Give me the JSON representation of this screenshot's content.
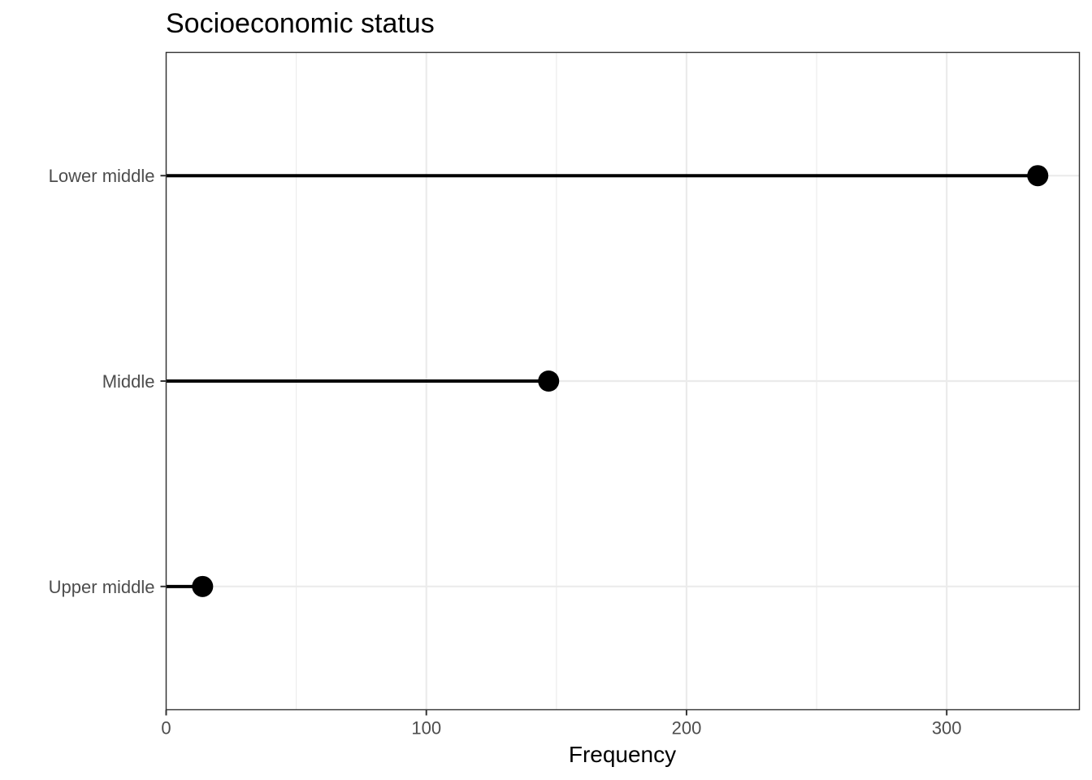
{
  "chart_data": {
    "type": "lollipop",
    "title": "Socioeconomic status",
    "xlabel": "Frequency",
    "ylabel": "",
    "categories": [
      "Lower middle",
      "Middle",
      "Upper middle"
    ],
    "values": [
      335,
      147,
      14
    ],
    "xlim": [
      0,
      351
    ],
    "x_ticks": [
      0,
      100,
      200,
      300
    ],
    "x_minor_ticks": [
      50,
      150,
      250
    ],
    "grid": true,
    "legend": "none",
    "colors": {
      "mark": "#000000",
      "grid": "#ebebeb",
      "border": "#333333",
      "tick_text": "#4d4d4d"
    }
  }
}
